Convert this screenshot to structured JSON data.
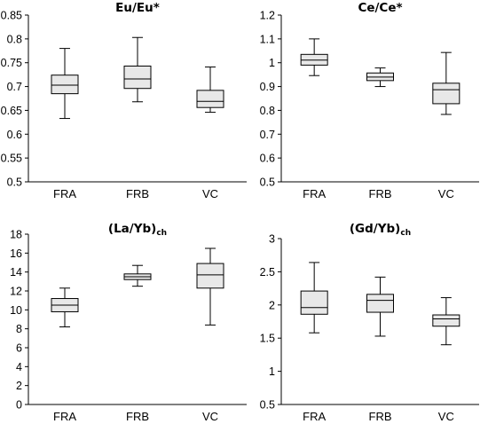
{
  "chart_data": [
    {
      "type": "box",
      "title": "Eu/Eu*",
      "title_subscript": "",
      "categories": [
        "FRA",
        "FRB",
        "VC"
      ],
      "ylim": [
        0.5,
        0.85
      ],
      "yticks": [
        0.5,
        0.55,
        0.6,
        0.65,
        0.7,
        0.75,
        0.8,
        0.85
      ],
      "ytick_labels": [
        "0.5",
        "0.55",
        "0.6",
        "0.65",
        "0.7",
        "0.75",
        "0.8",
        "0.85"
      ],
      "boxes": [
        {
          "min": 0.633,
          "q1": 0.685,
          "median": 0.703,
          "q3": 0.724,
          "max": 0.78
        },
        {
          "min": 0.668,
          "q1": 0.696,
          "median": 0.716,
          "q3": 0.743,
          "max": 0.803
        },
        {
          "min": 0.646,
          "q1": 0.656,
          "median": 0.669,
          "q3": 0.692,
          "max": 0.741
        }
      ]
    },
    {
      "type": "box",
      "title": "Ce/Ce*",
      "title_subscript": "",
      "categories": [
        "FRA",
        "FRB",
        "VC"
      ],
      "ylim": [
        0.5,
        1.2
      ],
      "yticks": [
        0.5,
        0.6,
        0.7,
        0.8,
        0.9,
        1.0,
        1.1,
        1.2
      ],
      "ytick_labels": [
        "0.5",
        "0.6",
        "0.7",
        "0.8",
        "0.9",
        "1",
        "1.1",
        "1.2"
      ],
      "boxes": [
        {
          "min": 0.946,
          "q1": 0.99,
          "median": 1.011,
          "q3": 1.035,
          "max": 1.1
        },
        {
          "min": 0.9,
          "q1": 0.925,
          "median": 0.94,
          "q3": 0.957,
          "max": 0.978
        },
        {
          "min": 0.783,
          "q1": 0.828,
          "median": 0.887,
          "q3": 0.914,
          "max": 1.043
        }
      ]
    },
    {
      "type": "box",
      "title": "(La/Yb)",
      "title_subscript": "ch",
      "categories": [
        "FRA",
        "FRB",
        "VC"
      ],
      "ylim": [
        0,
        18
      ],
      "yticks": [
        0,
        2,
        4,
        6,
        8,
        10,
        12,
        14,
        16,
        18
      ],
      "ytick_labels": [
        "0",
        "2",
        "4",
        "6",
        "8",
        "10",
        "12",
        "14",
        "16",
        "18"
      ],
      "boxes": [
        {
          "min": 8.2,
          "q1": 9.8,
          "median": 10.5,
          "q3": 11.2,
          "max": 12.3
        },
        {
          "min": 12.5,
          "q1": 13.2,
          "median": 13.5,
          "q3": 13.8,
          "max": 14.7
        },
        {
          "min": 8.4,
          "q1": 12.3,
          "median": 13.7,
          "q3": 14.9,
          "max": 16.5
        }
      ]
    },
    {
      "type": "box",
      "title": "(Gd/Yb)",
      "title_subscript": "ch",
      "categories": [
        "FRA",
        "FRB",
        "VC"
      ],
      "ylim": [
        0.5,
        3.0
      ],
      "yticks": [
        0.5,
        1.0,
        1.5,
        2.0,
        2.5,
        3.0
      ],
      "ytick_labels": [
        "0.5",
        "1",
        "1.5",
        "2",
        "2.5",
        "3"
      ],
      "boxes": [
        {
          "min": 1.58,
          "q1": 1.86,
          "median": 1.96,
          "q3": 2.21,
          "max": 2.64
        },
        {
          "min": 1.53,
          "q1": 1.89,
          "median": 2.07,
          "q3": 2.16,
          "max": 2.42
        },
        {
          "min": 1.4,
          "q1": 1.68,
          "median": 1.79,
          "q3": 1.85,
          "max": 2.11
        }
      ]
    }
  ],
  "colors": {
    "box_fill": "#e8e8e8",
    "stroke": "#000000",
    "background": "#ffffff"
  }
}
